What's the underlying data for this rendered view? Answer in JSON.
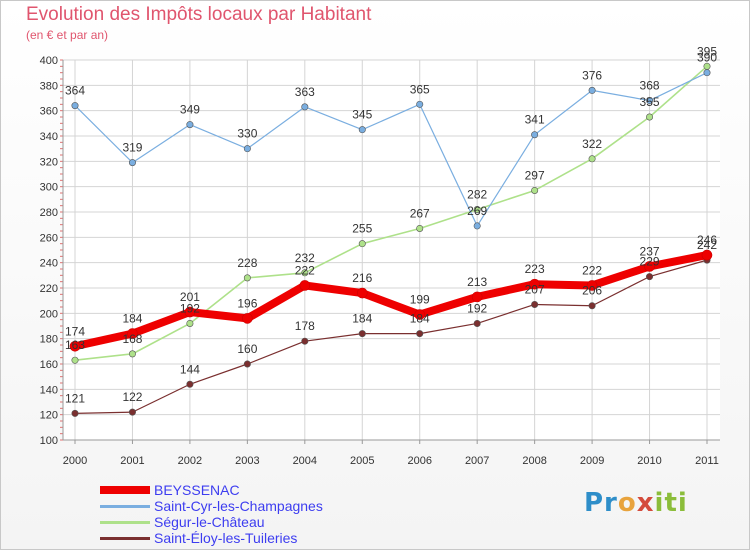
{
  "header": {
    "title": "Evolution des Impôts locaux par Habitant",
    "subtitle": "(en € et par an)"
  },
  "brand": {
    "letters": [
      "Pr",
      "o",
      "x",
      "iti"
    ]
  },
  "chart_data": {
    "type": "line",
    "title": "Evolution des Impôts locaux par Habitant",
    "subtitle": "(en € et par an)",
    "xlabel": "",
    "ylabel": "",
    "ylim": [
      100,
      400
    ],
    "yticks": [
      100,
      120,
      140,
      160,
      180,
      200,
      220,
      240,
      260,
      280,
      300,
      320,
      340,
      360,
      380,
      400
    ],
    "grid": true,
    "legend_position": "bottom-left",
    "x": [
      "2000",
      "2001",
      "2002",
      "2003",
      "2004",
      "2005",
      "2006",
      "2007",
      "2008",
      "2009",
      "2010",
      "2011"
    ],
    "series": [
      {
        "name": "Saint-Éloy-les-Tuileries",
        "color": "#7a2f2f",
        "width": 1.2,
        "values": [
          121,
          122,
          144,
          160,
          178,
          184,
          184,
          192,
          207,
          206,
          229,
          242
        ]
      },
      {
        "name": "Ségur-le-Château",
        "color": "#aee18a",
        "width": 1.6,
        "values": [
          163,
          168,
          192,
          228,
          232,
          255,
          267,
          282,
          297,
          322,
          355,
          395
        ]
      },
      {
        "name": "Saint-Cyr-les-Champagnes",
        "color": "#7aaee0",
        "width": 1.2,
        "values": [
          364,
          319,
          349,
          330,
          363,
          345,
          365,
          269,
          341,
          376,
          368,
          390
        ]
      },
      {
        "name": "BEYSSENAC",
        "color": "#ee0000",
        "width": 8,
        "values": [
          174,
          184,
          201,
          196,
          222,
          216,
          199,
          213,
          223,
          222,
          237,
          246
        ]
      }
    ],
    "legend": [
      {
        "name": "BEYSSENAC",
        "color": "#ee0000",
        "width": 8
      },
      {
        "name": "Saint-Cyr-les-Champagnes",
        "color": "#7aaee0",
        "width": 3
      },
      {
        "name": "Ségur-le-Château",
        "color": "#aee18a",
        "width": 3
      },
      {
        "name": "Saint-Éloy-les-Tuileries",
        "color": "#7a2f2f",
        "width": 3
      }
    ]
  }
}
